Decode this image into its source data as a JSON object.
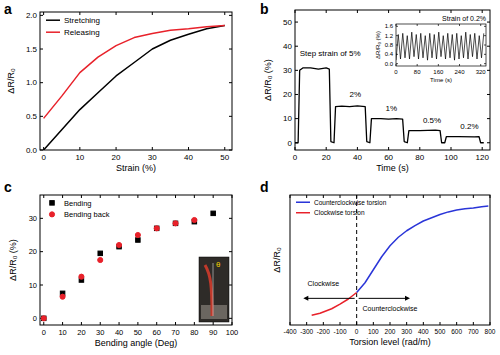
{
  "chart_data": [
    {
      "type": "line",
      "title": "a",
      "x_label": "Strain (%)",
      "y_label": "ΔR/R₀",
      "xlim": [
        -1,
        52
      ],
      "ylim": [
        0,
        2.05
      ],
      "xticks": [
        0,
        10,
        20,
        30,
        40,
        50
      ],
      "yticks": [
        {
          "value": 0,
          "label": "0.0"
        },
        {
          "value": 0.5,
          "label": "0.5"
        },
        {
          "value": 1,
          "label": "1.0"
        },
        {
          "value": 1.5,
          "label": "1.5"
        },
        {
          "value": 2,
          "label": "2.0"
        }
      ],
      "legend": "upper left",
      "x": [
        0,
        5,
        10,
        15,
        20,
        25,
        30,
        35,
        40,
        45,
        50
      ],
      "series": [
        {
          "name": "Stretching",
          "color": "#000000",
          "values": [
            0,
            0.3,
            0.6,
            0.85,
            1.1,
            1.3,
            1.5,
            1.63,
            1.72,
            1.8,
            1.85
          ]
        },
        {
          "name": "Releasing",
          "color": "#e8212a",
          "values": [
            0.47,
            0.8,
            1.15,
            1.38,
            1.55,
            1.67,
            1.73,
            1.78,
            1.8,
            1.83,
            1.85
          ]
        }
      ]
    },
    {
      "type": "line",
      "title": "b",
      "x_label": "Time (s)",
      "y_label": "ΔR/R₀ (%)",
      "xlim": [
        0,
        125
      ],
      "ylim": [
        -3,
        55
      ],
      "xticks": [
        0,
        20,
        40,
        60,
        80,
        100,
        120
      ],
      "yticks": [
        0,
        10,
        20,
        30,
        40,
        50
      ],
      "x": [
        0,
        2,
        3,
        5,
        10,
        15,
        20,
        22,
        23,
        25,
        26,
        30,
        35,
        40,
        45,
        46,
        48,
        49,
        55,
        60,
        65,
        69,
        70,
        72,
        73,
        80,
        90,
        93,
        94,
        96,
        97,
        105,
        115,
        118,
        119,
        121
      ],
      "series": [
        {
          "color": "#000000",
          "values": [
            0,
            0,
            30,
            31,
            31,
            30.5,
            31,
            30.5,
            0.5,
            0,
            15,
            15.2,
            15,
            15.3,
            15,
            0.5,
            0,
            10,
            10,
            9.8,
            10,
            9.8,
            0.5,
            0,
            5,
            5,
            5.2,
            5,
            0,
            0,
            2.5,
            2.5,
            2.4,
            2.5,
            0,
            0
          ]
        }
      ],
      "annotations": [
        {
          "text": "Step strain of 5%",
          "x": 3,
          "y": 36
        },
        {
          "text": "2%",
          "x": 35,
          "y": 19
        },
        {
          "text": "1%",
          "x": 58,
          "y": 13
        },
        {
          "text": "0.5%",
          "x": 82,
          "y": 8
        },
        {
          "text": "0.2%",
          "x": 106,
          "y": 5.5
        }
      ],
      "inset": {
        "type": "line",
        "title": "Strain of 0.2%",
        "x_label": "Time (s)",
        "y_label": "ΔR/R₀ (%)",
        "xlim": [
          0,
          340
        ],
        "ylim": [
          -0.1,
          1.7
        ],
        "xticks": [
          0,
          80,
          160,
          240,
          320
        ],
        "yticks": [
          {
            "value": 0,
            "label": "0.0"
          },
          {
            "value": 0.4,
            "label": "0.4"
          },
          {
            "value": 0.8,
            "label": "0.8"
          },
          {
            "value": 1.2,
            "label": "1.2"
          },
          {
            "value": 1.6,
            "label": "1.6"
          }
        ],
        "x": [
          0,
          8.5,
          17,
          25.5,
          34,
          42.5,
          51,
          59.5,
          68,
          76.5,
          85,
          93.5,
          102,
          110.5,
          119,
          127.5,
          136,
          144.5,
          153,
          161.5,
          170,
          178.5,
          187,
          195.5,
          204,
          212.5,
          221,
          229.5,
          238,
          246.5,
          255,
          263.5,
          272,
          280.5,
          289,
          297.5,
          306,
          314.5,
          323,
          331.5
        ],
        "series": [
          {
            "color": "#000000",
            "values": [
              0.15,
              1.25,
              0.2,
              1.3,
              0.25,
              1.2,
              0.2,
              1.35,
              0.3,
              1.25,
              0.2,
              1.3,
              0.25,
              1.2,
              0.15,
              1.3,
              0.25,
              1.25,
              0.2,
              1.35,
              0.3,
              1.2,
              0.2,
              1.3,
              0.25,
              1.25,
              0.15,
              1.3,
              0.2,
              1.2,
              0.25,
              1.35,
              0.2,
              1.25,
              0.3,
              1.3,
              0.2,
              1.2,
              0.25,
              1.3
            ]
          }
        ]
      }
    },
    {
      "type": "scatter",
      "title": "c",
      "x_label": "Bending angle (Deg)",
      "y_label": "ΔR/R₀ (%)",
      "xlim": [
        -2,
        100
      ],
      "ylim": [
        -2,
        37
      ],
      "xticks": [
        0,
        10,
        20,
        30,
        40,
        50,
        60,
        70,
        80,
        90,
        100
      ],
      "yticks": [
        0,
        10,
        20,
        30
      ],
      "legend": "upper left",
      "x": [
        0,
        10,
        20,
        30,
        40,
        50,
        60,
        70,
        80,
        90
      ],
      "series": [
        {
          "name": "Bending",
          "color": "#000000",
          "marker": "square",
          "values": [
            0,
            7.5,
            11.5,
            19.5,
            21.5,
            23.5,
            27,
            28.5,
            29,
            31.5
          ]
        },
        {
          "name": "Bending back",
          "color": "#e8212a",
          "marker": "circle",
          "values": [
            0,
            6.5,
            12.5,
            17.5,
            22,
            25,
            27,
            28.5,
            29.5,
            null
          ]
        }
      ],
      "annotations": [
        {
          "text": "θ"
        }
      ]
    },
    {
      "type": "line",
      "title": "d",
      "x_label": "Torsion level (rad/m)",
      "y_label": "ΔR/R₀",
      "xlim": [
        -400,
        800
      ],
      "ylim": [
        -0.5,
        1.5
      ],
      "xticks": [
        -400,
        -300,
        -200,
        -100,
        0,
        100,
        200,
        300,
        400,
        500,
        600,
        700,
        800
      ],
      "tick_labels": "x",
      "legend": "upper left",
      "reference_lines": [
        {
          "x": 0,
          "line_style": "dashed"
        }
      ],
      "annotations": [
        {
          "text": "Clockwise",
          "x": -200,
          "y": 0.1
        },
        {
          "text": "Counterclockwise",
          "x": 200,
          "y": -0.28
        }
      ],
      "series": [
        {
          "name": "Counterclockwise torsion",
          "color": "#2a35d8",
          "x": [
            0,
            50,
            100,
            150,
            200,
            250,
            300,
            350,
            400,
            450,
            500,
            550,
            600,
            650,
            700,
            750,
            790
          ],
          "values": [
            0,
            0.15,
            0.35,
            0.55,
            0.72,
            0.85,
            0.95,
            1.03,
            1.1,
            1.15,
            1.2,
            1.24,
            1.27,
            1.29,
            1.3,
            1.32,
            1.33
          ]
        },
        {
          "name": "Clockwise torsion",
          "color": "#e8212a",
          "x": [
            -270,
            -220,
            -150,
            -100,
            -50,
            0
          ],
          "values": [
            -0.35,
            -0.32,
            -0.25,
            -0.18,
            -0.1,
            0
          ]
        }
      ]
    }
  ]
}
